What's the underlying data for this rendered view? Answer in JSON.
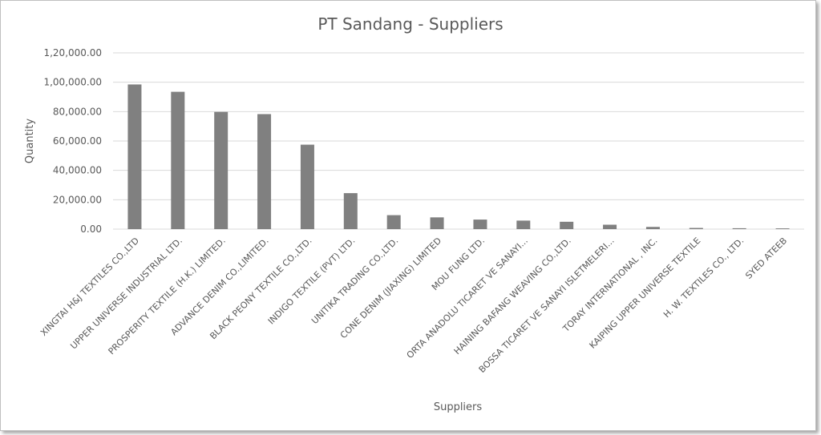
{
  "chart_data": {
    "type": "bar",
    "title": "PT Sandang - Suppliers",
    "xlabel": "Suppliers",
    "ylabel": "Quantity",
    "ylim": [
      0,
      120000
    ],
    "yticks": [
      {
        "value": 0,
        "label": "0.00"
      },
      {
        "value": 20000,
        "label": "20,000.00"
      },
      {
        "value": 40000,
        "label": "40,000.00"
      },
      {
        "value": 60000,
        "label": "60,000.00"
      },
      {
        "value": 80000,
        "label": "80,000.00"
      },
      {
        "value": 100000,
        "label": "1,00,000.00"
      },
      {
        "value": 120000,
        "label": "1,20,000.00"
      }
    ],
    "grid": true,
    "legend": "none",
    "bar_color": "#808080",
    "categories": [
      "XINGTAI H&J TEXTILES CO.,LTD",
      "UPPER UNIVERSE INDUSTRIAL LTD.",
      "PROSPERITY TEXTILE (H.K.) LIMITED.",
      "ADVANCE DENIM CO.,LIMITED.",
      "BLACK PEONY TEXTILE CO.,LTD.",
      "INDIGO TEXTILE (PVT) LTD.",
      "UNITIKA TRADING CO.,LTD.",
      "CONE DENIM (JIAXING) LIMITED",
      "MOU FUNG LTD.",
      "ORTA ANADOLU TICARET VE SANAYI...",
      "HAINING BAFANG WEAVING CO.,LTD.",
      "BOSSA TICARET VE SANAYI ISLETMELERI...",
      "TORAY INTERNATIONAL , INC.",
      "KAIPING UPPER UNIVERSE TEXTILE",
      "H. W. TEXTILES CO., LTD.",
      "SYED ATEEB"
    ],
    "values": [
      98500,
      93500,
      79800,
      78300,
      57500,
      24500,
      9500,
      8000,
      6500,
      5800,
      5000,
      3000,
      1500,
      800,
      600,
      500
    ]
  }
}
